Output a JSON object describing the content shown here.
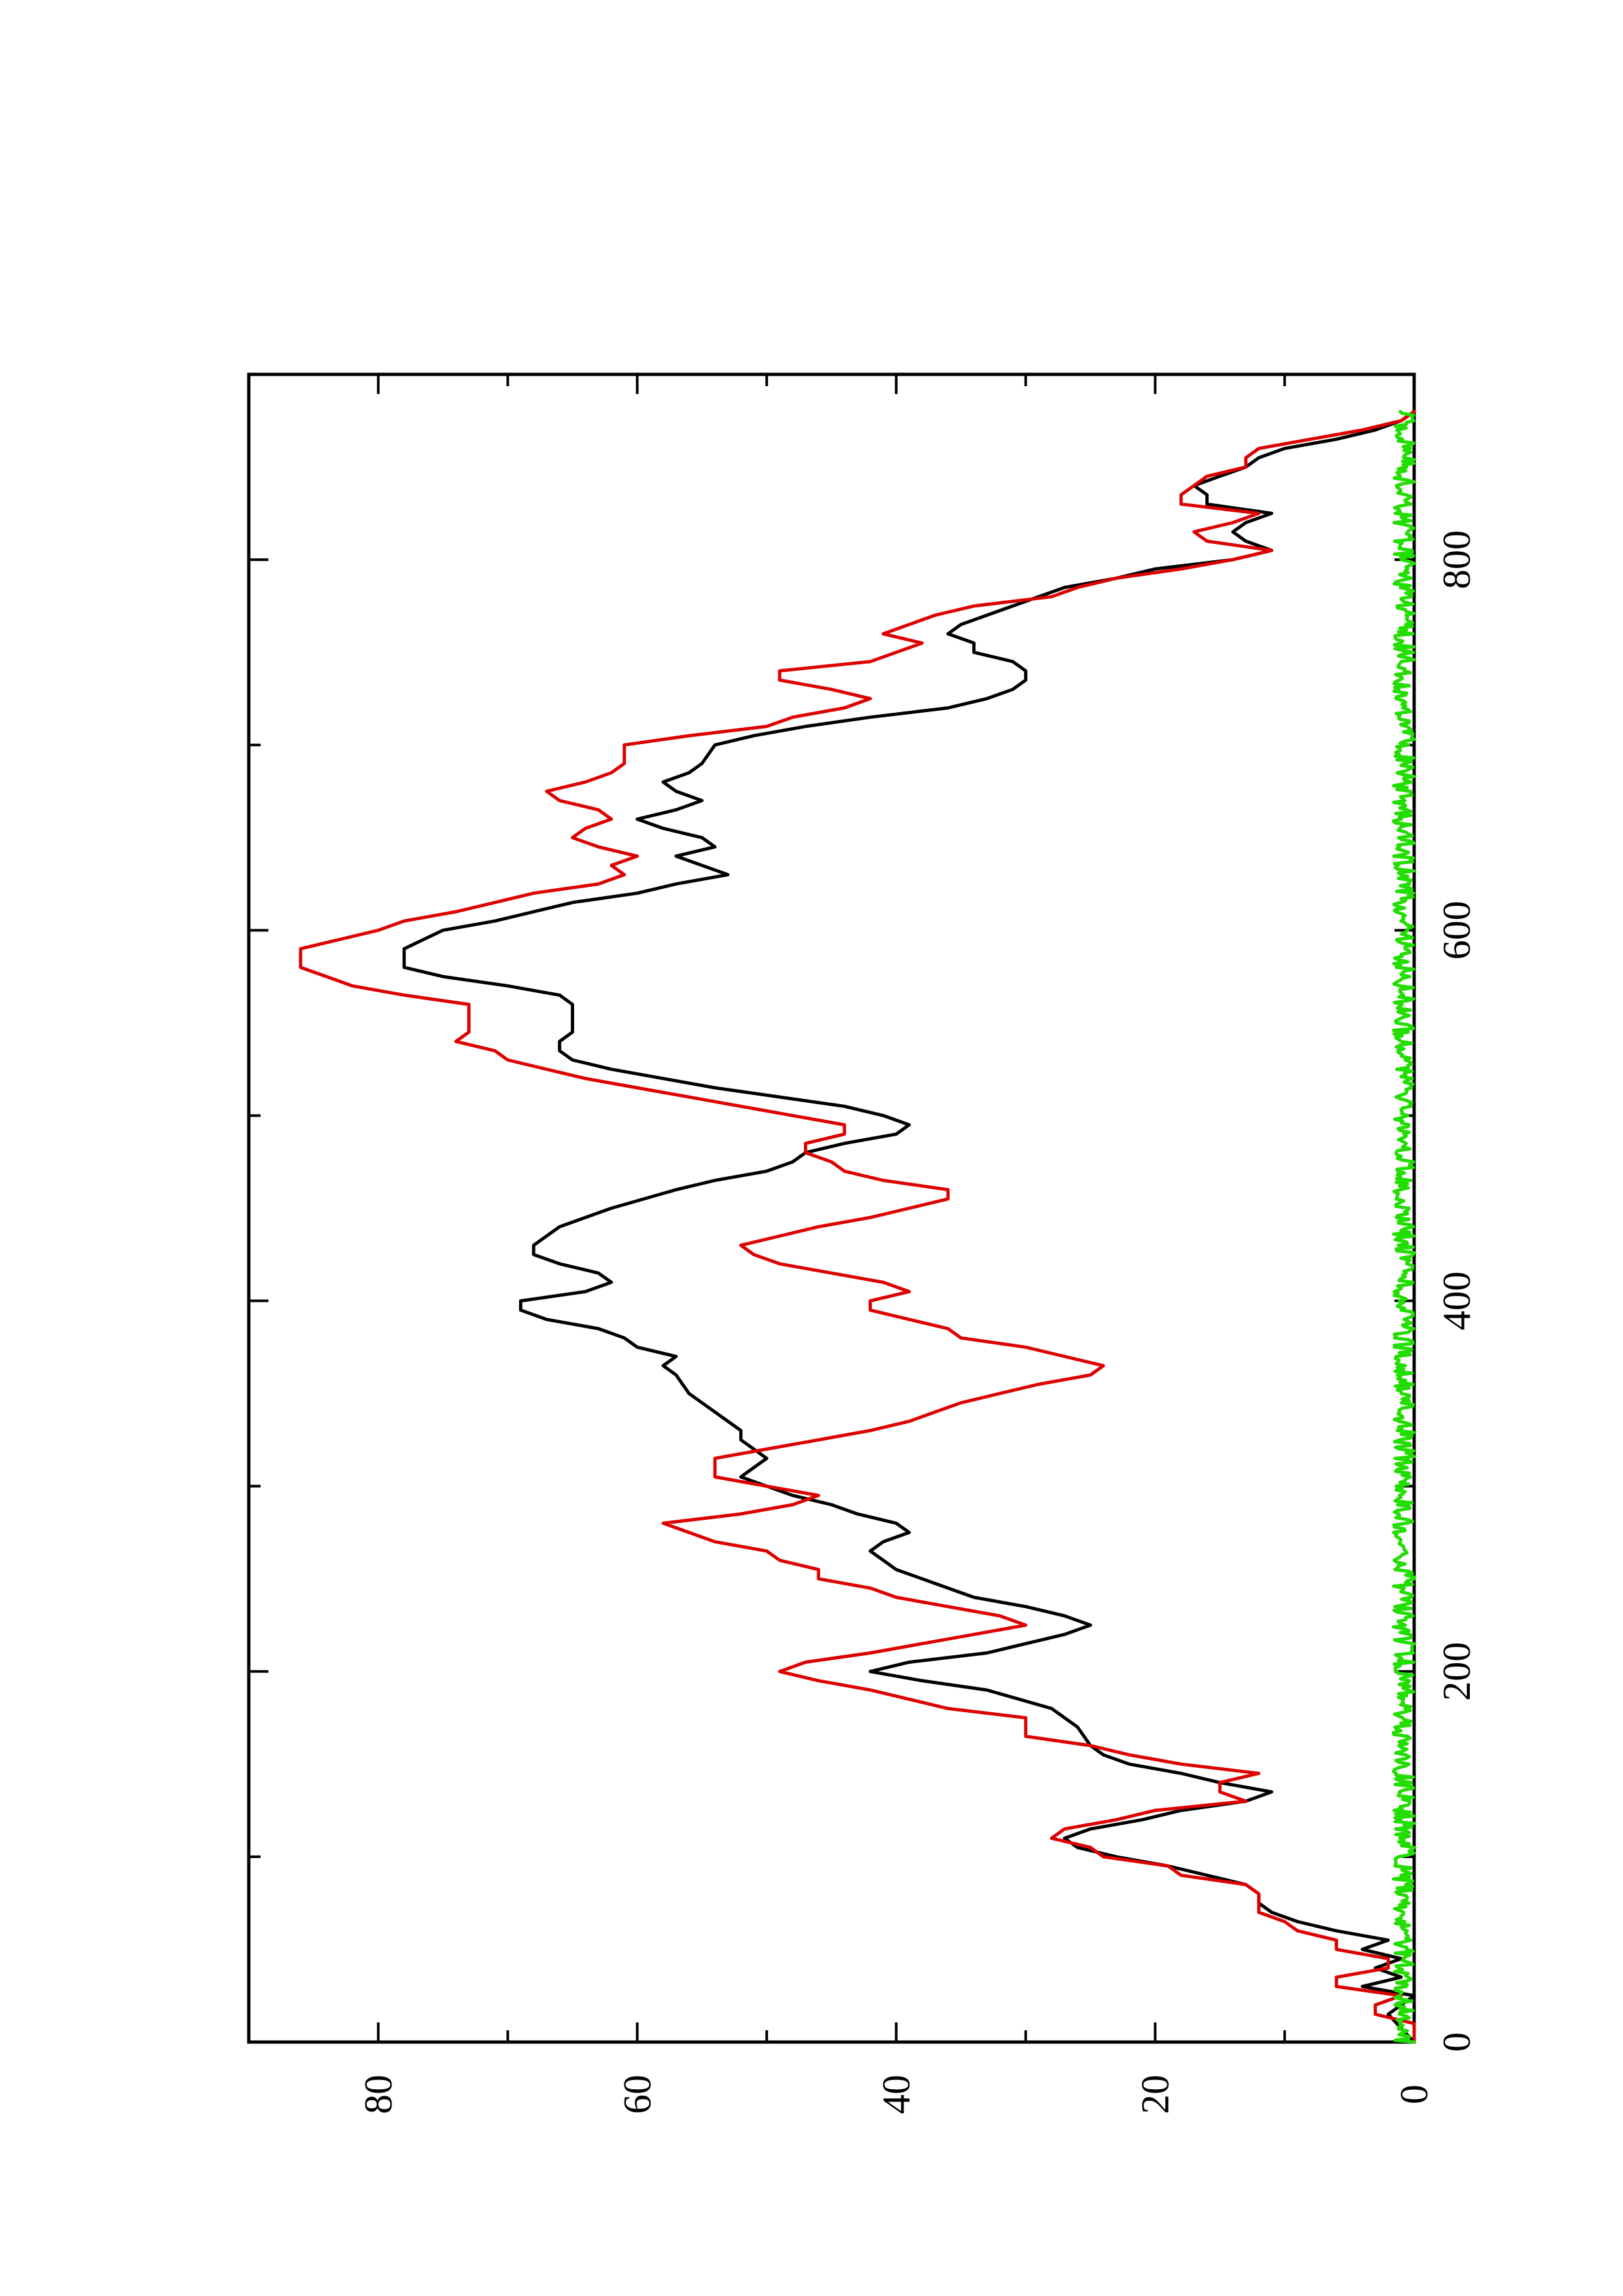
{
  "chart_data": {
    "type": "line",
    "orientation": "rotated-90-ccw",
    "title": "",
    "xlabel": "",
    "ylabel": "",
    "xlim": [
      0,
      900
    ],
    "ylim": [
      0,
      90
    ],
    "x_ticks": [
      0,
      200,
      400,
      600,
      800
    ],
    "x_minor_ticks": [
      100,
      300,
      500,
      700
    ],
    "y_ticks": [
      0,
      20,
      40,
      60,
      80
    ],
    "y_minor_ticks": [
      10,
      30,
      50,
      70
    ],
    "grid": false,
    "legend": "none",
    "series": [
      {
        "color": "#000000",
        "points": [
          [
            0,
            0
          ],
          [
            15,
            2
          ],
          [
            25,
            0
          ],
          [
            30,
            4
          ],
          [
            35,
            1
          ],
          [
            40,
            3
          ],
          [
            45,
            1
          ],
          [
            50,
            4
          ],
          [
            55,
            2
          ],
          [
            60,
            6
          ],
          [
            65,
            9
          ],
          [
            70,
            11
          ],
          [
            75,
            12
          ],
          [
            80,
            12
          ],
          [
            85,
            13
          ],
          [
            90,
            16
          ],
          [
            95,
            19
          ],
          [
            100,
            23
          ],
          [
            105,
            26
          ],
          [
            110,
            27
          ],
          [
            115,
            25
          ],
          [
            120,
            21
          ],
          [
            125,
            18
          ],
          [
            130,
            13
          ],
          [
            135,
            11
          ],
          [
            140,
            15
          ],
          [
            145,
            18
          ],
          [
            150,
            22
          ],
          [
            155,
            24
          ],
          [
            160,
            25
          ],
          [
            170,
            26
          ],
          [
            180,
            28
          ],
          [
            190,
            33
          ],
          [
            195,
            38
          ],
          [
            200,
            42
          ],
          [
            205,
            39
          ],
          [
            210,
            33
          ],
          [
            215,
            30
          ],
          [
            220,
            27
          ],
          [
            225,
            25
          ],
          [
            230,
            27
          ],
          [
            235,
            30
          ],
          [
            240,
            34
          ],
          [
            245,
            36
          ],
          [
            250,
            38
          ],
          [
            255,
            40
          ],
          [
            260,
            41
          ],
          [
            265,
            42
          ],
          [
            270,
            41
          ],
          [
            275,
            39
          ],
          [
            280,
            40
          ],
          [
            285,
            43
          ],
          [
            290,
            45
          ],
          [
            295,
            48
          ],
          [
            300,
            50
          ],
          [
            305,
            52
          ],
          [
            310,
            51
          ],
          [
            315,
            50
          ],
          [
            320,
            51
          ],
          [
            325,
            52
          ],
          [
            330,
            52
          ],
          [
            340,
            54
          ],
          [
            350,
            56
          ],
          [
            360,
            57
          ],
          [
            365,
            58
          ],
          [
            370,
            57
          ],
          [
            375,
            60
          ],
          [
            380,
            61
          ],
          [
            385,
            63
          ],
          [
            390,
            67
          ],
          [
            395,
            69
          ],
          [
            400,
            69
          ],
          [
            405,
            64
          ],
          [
            410,
            62
          ],
          [
            415,
            63
          ],
          [
            420,
            66
          ],
          [
            425,
            68
          ],
          [
            430,
            68
          ],
          [
            440,
            66
          ],
          [
            450,
            62
          ],
          [
            460,
            57
          ],
          [
            465,
            54
          ],
          [
            470,
            50
          ],
          [
            475,
            48
          ],
          [
            480,
            47
          ],
          [
            485,
            44
          ],
          [
            490,
            40
          ],
          [
            495,
            39
          ],
          [
            500,
            41
          ],
          [
            505,
            44
          ],
          [
            510,
            49
          ],
          [
            515,
            54
          ],
          [
            520,
            58
          ],
          [
            525,
            62
          ],
          [
            530,
            65
          ],
          [
            535,
            66
          ],
          [
            540,
            66
          ],
          [
            545,
            65
          ],
          [
            550,
            65
          ],
          [
            560,
            65
          ],
          [
            565,
            66
          ],
          [
            570,
            70
          ],
          [
            575,
            75
          ],
          [
            580,
            78
          ],
          [
            590,
            78
          ],
          [
            600,
            75
          ],
          [
            605,
            71
          ],
          [
            610,
            68
          ],
          [
            615,
            65
          ],
          [
            620,
            60
          ],
          [
            625,
            57
          ],
          [
            630,
            53
          ],
          [
            635,
            55
          ],
          [
            640,
            57
          ],
          [
            645,
            54
          ],
          [
            650,
            55
          ],
          [
            655,
            58
          ],
          [
            660,
            60
          ],
          [
            665,
            57
          ],
          [
            670,
            55
          ],
          [
            675,
            57
          ],
          [
            680,
            58
          ],
          [
            685,
            56
          ],
          [
            690,
            55
          ],
          [
            700,
            54
          ],
          [
            705,
            51
          ],
          [
            710,
            47
          ],
          [
            715,
            42
          ],
          [
            720,
            36
          ],
          [
            725,
            33
          ],
          [
            730,
            31
          ],
          [
            735,
            30
          ],
          [
            740,
            30
          ],
          [
            745,
            31
          ],
          [
            750,
            34
          ],
          [
            755,
            34
          ],
          [
            760,
            36
          ],
          [
            765,
            35
          ],
          [
            770,
            33
          ],
          [
            775,
            31
          ],
          [
            780,
            29
          ],
          [
            785,
            27
          ],
          [
            790,
            23
          ],
          [
            795,
            20
          ],
          [
            800,
            14
          ],
          [
            805,
            11
          ],
          [
            810,
            13
          ],
          [
            815,
            14
          ],
          [
            820,
            13
          ],
          [
            825,
            11
          ],
          [
            830,
            16
          ],
          [
            835,
            16
          ],
          [
            840,
            17
          ],
          [
            845,
            15
          ],
          [
            850,
            13
          ],
          [
            855,
            12
          ],
          [
            860,
            10
          ],
          [
            865,
            6
          ],
          [
            870,
            3
          ],
          [
            875,
            1
          ],
          [
            880,
            0
          ]
        ]
      },
      {
        "color": "#dd0000",
        "points": [
          [
            0,
            0
          ],
          [
            10,
            0
          ],
          [
            15,
            3
          ],
          [
            20,
            3
          ],
          [
            25,
            1
          ],
          [
            30,
            6
          ],
          [
            35,
            6
          ],
          [
            40,
            2
          ],
          [
            45,
            2
          ],
          [
            50,
            6
          ],
          [
            55,
            6
          ],
          [
            60,
            9
          ],
          [
            65,
            10
          ],
          [
            70,
            12
          ],
          [
            80,
            12
          ],
          [
            85,
            13
          ],
          [
            90,
            18
          ],
          [
            95,
            19
          ],
          [
            100,
            24
          ],
          [
            105,
            25
          ],
          [
            110,
            28
          ],
          [
            115,
            27
          ],
          [
            120,
            23
          ],
          [
            125,
            20
          ],
          [
            130,
            13
          ],
          [
            135,
            15
          ],
          [
            140,
            15
          ],
          [
            145,
            12
          ],
          [
            150,
            18
          ],
          [
            155,
            22
          ],
          [
            160,
            25
          ],
          [
            165,
            30
          ],
          [
            175,
            30
          ],
          [
            180,
            36
          ],
          [
            190,
            42
          ],
          [
            195,
            46
          ],
          [
            200,
            49
          ],
          [
            205,
            47
          ],
          [
            210,
            42
          ],
          [
            215,
            38
          ],
          [
            220,
            34
          ],
          [
            225,
            30
          ],
          [
            230,
            32
          ],
          [
            235,
            36
          ],
          [
            240,
            40
          ],
          [
            245,
            42
          ],
          [
            250,
            46
          ],
          [
            255,
            46
          ],
          [
            260,
            49
          ],
          [
            265,
            50
          ],
          [
            270,
            54
          ],
          [
            275,
            56
          ],
          [
            280,
            58
          ],
          [
            285,
            52
          ],
          [
            290,
            48
          ],
          [
            295,
            46
          ],
          [
            300,
            50
          ],
          [
            305,
            54
          ],
          [
            315,
            54
          ],
          [
            320,
            50
          ],
          [
            325,
            46
          ],
          [
            330,
            42
          ],
          [
            335,
            39
          ],
          [
            340,
            37
          ],
          [
            345,
            35
          ],
          [
            350,
            32
          ],
          [
            355,
            29
          ],
          [
            360,
            25
          ],
          [
            365,
            24
          ],
          [
            370,
            27
          ],
          [
            375,
            30
          ],
          [
            380,
            35
          ],
          [
            385,
            36
          ],
          [
            390,
            39
          ],
          [
            395,
            42
          ],
          [
            400,
            42
          ],
          [
            405,
            39
          ],
          [
            410,
            41
          ],
          [
            415,
            45
          ],
          [
            420,
            49
          ],
          [
            425,
            51
          ],
          [
            430,
            52
          ],
          [
            435,
            49
          ],
          [
            440,
            46
          ],
          [
            445,
            42
          ],
          [
            450,
            39
          ],
          [
            455,
            36
          ],
          [
            460,
            36
          ],
          [
            465,
            41
          ],
          [
            470,
            44
          ],
          [
            475,
            45
          ],
          [
            480,
            47
          ],
          [
            485,
            47
          ],
          [
            490,
            44
          ],
          [
            495,
            44
          ],
          [
            500,
            48
          ],
          [
            505,
            52
          ],
          [
            510,
            56
          ],
          [
            515,
            60
          ],
          [
            520,
            64
          ],
          [
            525,
            67
          ],
          [
            530,
            70
          ],
          [
            535,
            71
          ],
          [
            540,
            74
          ],
          [
            545,
            73
          ],
          [
            550,
            73
          ],
          [
            560,
            73
          ],
          [
            565,
            78
          ],
          [
            570,
            82
          ],
          [
            575,
            84
          ],
          [
            580,
            86
          ],
          [
            590,
            86
          ],
          [
            595,
            83
          ],
          [
            600,
            80
          ],
          [
            605,
            78
          ],
          [
            610,
            74
          ],
          [
            615,
            71
          ],
          [
            620,
            68
          ],
          [
            625,
            63
          ],
          [
            630,
            61
          ],
          [
            635,
            62
          ],
          [
            640,
            60
          ],
          [
            645,
            63
          ],
          [
            650,
            65
          ],
          [
            655,
            64
          ],
          [
            660,
            62
          ],
          [
            665,
            63
          ],
          [
            670,
            66
          ],
          [
            675,
            67
          ],
          [
            680,
            64
          ],
          [
            685,
            62
          ],
          [
            690,
            61
          ],
          [
            700,
            61
          ],
          [
            705,
            56
          ],
          [
            710,
            50
          ],
          [
            715,
            48
          ],
          [
            720,
            44
          ],
          [
            725,
            42
          ],
          [
            730,
            45
          ],
          [
            735,
            49
          ],
          [
            740,
            49
          ],
          [
            745,
            42
          ],
          [
            750,
            40
          ],
          [
            755,
            38
          ],
          [
            760,
            41
          ],
          [
            765,
            39
          ],
          [
            770,
            37
          ],
          [
            775,
            34
          ],
          [
            780,
            28
          ],
          [
            785,
            26
          ],
          [
            790,
            23
          ],
          [
            795,
            18
          ],
          [
            800,
            14
          ],
          [
            805,
            11
          ],
          [
            810,
            16
          ],
          [
            815,
            17
          ],
          [
            820,
            14
          ],
          [
            825,
            12
          ],
          [
            830,
            18
          ],
          [
            835,
            18
          ],
          [
            840,
            17
          ],
          [
            845,
            16
          ],
          [
            850,
            13
          ],
          [
            855,
            13
          ],
          [
            860,
            12
          ],
          [
            865,
            8
          ],
          [
            870,
            4
          ],
          [
            875,
            1
          ],
          [
            880,
            0
          ]
        ]
      },
      {
        "color": "#22dd00",
        "generator": "noise",
        "x_range": [
          0,
          880
        ],
        "step": 1,
        "y_range": [
          0,
          1.6
        ]
      }
    ]
  }
}
